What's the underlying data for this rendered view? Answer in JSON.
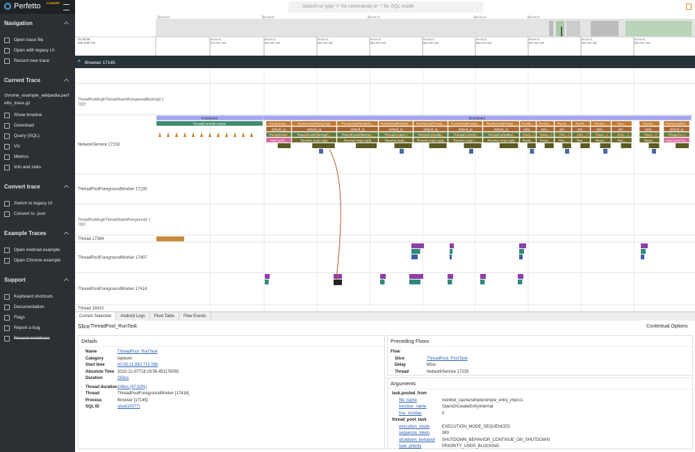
{
  "app": {
    "name": "Perfetto",
    "badge": "CANARY"
  },
  "search": {
    "placeholder": "Search or type '>' for commands or ':' for SQL mode"
  },
  "sidebar": {
    "sections": [
      {
        "title": "Navigation",
        "items": [
          "Open trace file",
          "Open with legacy UI",
          "Record new trace"
        ]
      },
      {
        "title": "Current Trace",
        "subtitle": "chrome_example_wikipedia.perfetto_trace.gz",
        "items": [
          "Show timeline",
          "Download",
          "Query (SQL)",
          "Viz",
          "Metrics",
          "Info and stats"
        ]
      },
      {
        "title": "Convert trace",
        "items": [
          "Switch to legacy UI",
          "Convert to .json"
        ]
      },
      {
        "title": "Example Traces",
        "items": [
          "Open Android example",
          "Open Chrome example"
        ]
      },
      {
        "title": "Support",
        "items": [
          "Keyboard shortcuts",
          "Documentation",
          "Flags",
          "Report a bug",
          "Record metatrace"
        ]
      }
    ]
  },
  "timeline": {
    "overview_ticks": [
      "00:00:00",
      "00:00:05",
      "00:00:10",
      "00:00:15",
      "00:00:20"
    ],
    "ruler_origin": [
      "01:55:56",
      "926 228 716"
    ],
    "ruler_ticks": [
      [
        "00:00:21",
        "878 000 000"
      ],
      [
        "00:00:21",
        "880 000 000"
      ],
      [
        "00:00:21",
        "882 000 000"
      ],
      [
        "00:00:21",
        "884 000 000"
      ],
      [
        "00:00:21",
        "886 000 000"
      ],
      [
        "00:00:21",
        "888 000 000"
      ],
      [
        "00:00:21",
        "890 000 000"
      ],
      [
        "00:00:21",
        "892 000 000"
      ],
      [
        "00:00:21",
        "894 000 000"
      ]
    ],
    "group": "Browser 17145",
    "tracks": [
      "ThreadPoolSingleThreadSharedForegroundBlocking0 17222",
      "NetworkService 17233",
      "ThreadPoolForegroundWorker 17235",
      "ThreadPoolSingleThreadSharedForeground1 17237",
      "Thread 17384",
      "ThreadPoolForegroundWorker 17407",
      "ThreadPoolForegroundWorker 17416",
      "Thread 18410"
    ],
    "network_top": [
      "DnLibevent",
      "DnLibevent",
      "ThreadController active"
    ],
    "network_rows": [
      [
        "RunNormal...",
        "RunNormalPriorityTask",
        "RunNormalPriorityTa...",
        "RunNormalPriorityT...",
        "RunNormalPriority...",
        "RunNormalPriority...",
        "RunNormalPriority...",
        "RunNo...",
        "RunNo...",
        "RunN...",
        "RunN...",
        "RunNo...",
        "Run...",
        "RunNo...",
        "RunNormalPri..."
      ],
      [
        "default_tq",
        "default_tq",
        "default_tq",
        "default_tq",
        "default_tq",
        "default_tq",
        "default_tq",
        "defa...",
        "defa...",
        "def...",
        "def...",
        "defa...",
        "def...",
        "defa...",
        "default_tq"
      ],
      [
        "ThreadContr...",
        "ThreadControllerImpl::...",
        "ThreadControllerImp...",
        "ThreadControl...",
        "ThreadControlle...",
        "ThreadControll...",
        "ThreadController...",
        "Threa...",
        "Threa...",
        "Thr...",
        "Thr...",
        "Threa...",
        "Thr...",
        "Threa...",
        "ThreadCo..."
      ],
      [
        "HttpCache...",
        "Receive mojo reply",
        "Receive mojo reply",
        "Receive mojo...",
        "Receive mojo reply",
        "Receive mojo r...",
        "Receive mojo reply",
        "Recei...",
        "Recei...",
        "Rec...",
        "Rec...",
        "Recei...",
        "Rec...",
        "Recei...",
        "HttpCacheTra..."
      ]
    ]
  },
  "panel": {
    "tabs": [
      "Current Selection",
      "Android Logs",
      "Pivot Table",
      "Flow Events"
    ],
    "slice_label": "Slice",
    "slice_name": "ThreadPool_RunTask",
    "contextual": "Contextual Options",
    "details_title": "Details",
    "details": [
      [
        "Name",
        "ThreadPool_RunTask"
      ],
      [
        "Category",
        "toplevel"
      ],
      [
        "Start time",
        "00:00:21.882 715 080"
      ],
      [
        "Absolute Time",
        "2022-11-07T18:19:56.451176055"
      ],
      [
        "Duration",
        "283us"
      ],
      [
        "Thread duration",
        "248us (87.63%)"
      ],
      [
        "Thread",
        "ThreadPoolForegroundWorker [17416]"
      ],
      [
        "Process",
        "Browser [17145]"
      ],
      [
        "SQL ID",
        "slice[10077]"
      ]
    ],
    "flows_title": "Preceding Flows",
    "flow_label": "Flow",
    "flow": [
      [
        "Slice",
        "ThreadPool_PostTask"
      ],
      [
        "Delay",
        "65us"
      ],
      [
        "Thread",
        "NetworkService 17233"
      ]
    ],
    "args_title": "Arguments",
    "args": [
      {
        "group": "task.posted_from",
        "items": [
          [
            "file_name",
            "net/disk_cache/simple/simple_entry_impl.cc"
          ],
          [
            "function_name",
            "OpenOrCreateEntryInternal"
          ],
          [
            "line_number",
            0
          ]
        ]
      },
      {
        "group": "thread_pool_task",
        "items": [
          [
            "execution_mode",
            "EXECUTION_MODE_SEQUENCED"
          ],
          [
            "sequence_token",
            383
          ],
          [
            "shutdown_behavior",
            "SHUTDOWN_BEHAVIOR_CONTINUE_ON_SHUTDOWN"
          ],
          [
            "task_priority",
            "PRIORITY_USER_BLOCKING"
          ]
        ]
      }
    ]
  }
}
